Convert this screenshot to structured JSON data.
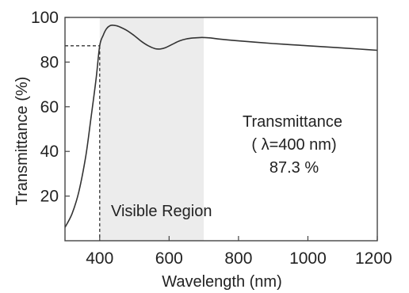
{
  "chart_data": {
    "type": "line",
    "xlabel": "Wavelength (nm)",
    "ylabel": "Transmittance (%)",
    "xlim": [
      300,
      1200
    ],
    "ylim": [
      0,
      100
    ],
    "x_ticks": [
      400,
      600,
      800,
      1000,
      1200
    ],
    "x_tick_labels": [
      "400",
      "600",
      "800",
      "1000",
      "1200"
    ],
    "y_ticks": [
      20,
      40,
      60,
      80,
      100
    ],
    "y_tick_labels": [
      "20",
      "40",
      "60",
      "80",
      "100"
    ],
    "grid": false,
    "series": [
      {
        "x": [
          300,
          320,
          340,
          360,
          375,
          390,
          400,
          410,
          420,
          430,
          440,
          450,
          460,
          480,
          500,
          520,
          540,
          560,
          575,
          590,
          610,
          630,
          650,
          670,
          690,
          700,
          720,
          750,
          800,
          850,
          900,
          950,
          1000,
          1050,
          1100,
          1150,
          1200
        ],
        "y": [
          6,
          12,
          22,
          38,
          55,
          73,
          87.3,
          92,
          95,
          96.3,
          96.5,
          96.2,
          95.6,
          94,
          91.8,
          89.3,
          87.3,
          86,
          85.9,
          86.5,
          88,
          89.5,
          90.4,
          90.8,
          91,
          91,
          90.8,
          90.2,
          89.5,
          88.9,
          88.3,
          87.8,
          87.3,
          86.8,
          86.3,
          85.8,
          85.3
        ],
        "color": "#333333"
      }
    ],
    "highlight_region": {
      "x": [
        400,
        700
      ],
      "label": "Visible Region",
      "color": "#ececec"
    },
    "reference_point": {
      "x": 400,
      "y": 87.3
    },
    "annotation": {
      "line1": "Transmittance",
      "line2": "( λ=400 nm)",
      "line3": "87.3 %"
    }
  }
}
